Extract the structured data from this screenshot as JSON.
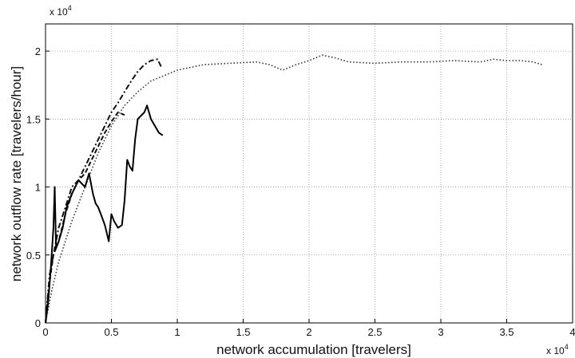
{
  "chart_data": {
    "type": "line",
    "title": "",
    "xlabel": "network accumulation [travelers]",
    "ylabel": "network outflow rate [travelers/hour]",
    "x_multiplier_label": "x 10",
    "x_multiplier_exp": "4",
    "y_multiplier_label": "x 10",
    "y_multiplier_exp": "4",
    "x_scale": 10000,
    "y_scale": 10000,
    "xlim": [
      0,
      4
    ],
    "ylim": [
      0,
      2.2
    ],
    "x_tick_values": [
      0,
      0.5,
      1,
      1.5,
      2,
      2.5,
      3,
      3.5,
      4
    ],
    "x_tick_labels": [
      "0",
      "0.5",
      "1",
      "1.5",
      "2",
      "2.5",
      "3",
      "3.5",
      "4"
    ],
    "y_tick_values": [
      0,
      0.5,
      1,
      1.5,
      2
    ],
    "y_tick_labels": [
      "0",
      "0.5",
      "1",
      "1.5",
      "2"
    ],
    "grid": true,
    "legend": "none",
    "series": [
      {
        "style": "dotted",
        "color": "#333333",
        "x": [
          0,
          0.05,
          0.1,
          0.2,
          0.3,
          0.4,
          0.5,
          0.6,
          0.7,
          0.8,
          0.9,
          1.0,
          1.2,
          1.4,
          1.6,
          1.7,
          1.8,
          1.9,
          2.0,
          2.1,
          2.2,
          2.3,
          2.5,
          2.7,
          2.9,
          3.1,
          3.3,
          3.4,
          3.5,
          3.6,
          3.7,
          3.77
        ],
        "y": [
          0,
          0.25,
          0.45,
          0.75,
          1.0,
          1.25,
          1.45,
          1.6,
          1.7,
          1.78,
          1.82,
          1.86,
          1.9,
          1.91,
          1.92,
          1.9,
          1.86,
          1.9,
          1.93,
          1.97,
          1.95,
          1.92,
          1.91,
          1.92,
          1.92,
          1.93,
          1.92,
          1.94,
          1.93,
          1.93,
          1.92,
          1.9
        ]
      },
      {
        "style": "dashdot",
        "color": "#111111",
        "x": [
          0,
          0.03,
          0.07,
          0.1,
          0.15,
          0.2,
          0.25,
          0.3,
          0.35,
          0.4,
          0.45,
          0.5,
          0.55,
          0.6,
          0.65,
          0.7,
          0.75,
          0.8,
          0.85,
          0.88
        ],
        "y": [
          0,
          0.35,
          0.55,
          0.7,
          0.85,
          1.0,
          1.05,
          1.15,
          1.25,
          1.35,
          1.45,
          1.55,
          1.62,
          1.7,
          1.78,
          1.85,
          1.9,
          1.93,
          1.94,
          1.88
        ]
      },
      {
        "style": "dashed",
        "color": "#111111",
        "x": [
          0,
          0.03,
          0.06,
          0.1,
          0.15,
          0.2,
          0.25,
          0.3,
          0.35,
          0.4,
          0.45,
          0.5,
          0.55,
          0.6
        ],
        "y": [
          0,
          0.3,
          0.5,
          0.6,
          0.8,
          0.95,
          1.05,
          1.1,
          1.2,
          1.3,
          1.4,
          1.48,
          1.55,
          1.53
        ]
      },
      {
        "style": "solid",
        "color": "#000000",
        "x": [
          0,
          0.02,
          0.04,
          0.06,
          0.07,
          0.08,
          0.1,
          0.13,
          0.16,
          0.2,
          0.25,
          0.3,
          0.33,
          0.36,
          0.38,
          0.4,
          0.42,
          0.45,
          0.48,
          0.5,
          0.52,
          0.55,
          0.58,
          0.6,
          0.62,
          0.64,
          0.66,
          0.68,
          0.7,
          0.72,
          0.75,
          0.77,
          0.8,
          0.83,
          0.86,
          0.89
        ],
        "y": [
          0,
          0.15,
          0.4,
          0.7,
          1.0,
          0.55,
          0.6,
          0.7,
          0.85,
          0.95,
          1.05,
          1.0,
          1.1,
          0.95,
          0.88,
          0.85,
          0.8,
          0.72,
          0.6,
          0.8,
          0.75,
          0.7,
          0.72,
          0.9,
          1.2,
          1.15,
          1.12,
          1.35,
          1.5,
          1.52,
          1.55,
          1.6,
          1.5,
          1.45,
          1.4,
          1.38
        ]
      }
    ]
  }
}
